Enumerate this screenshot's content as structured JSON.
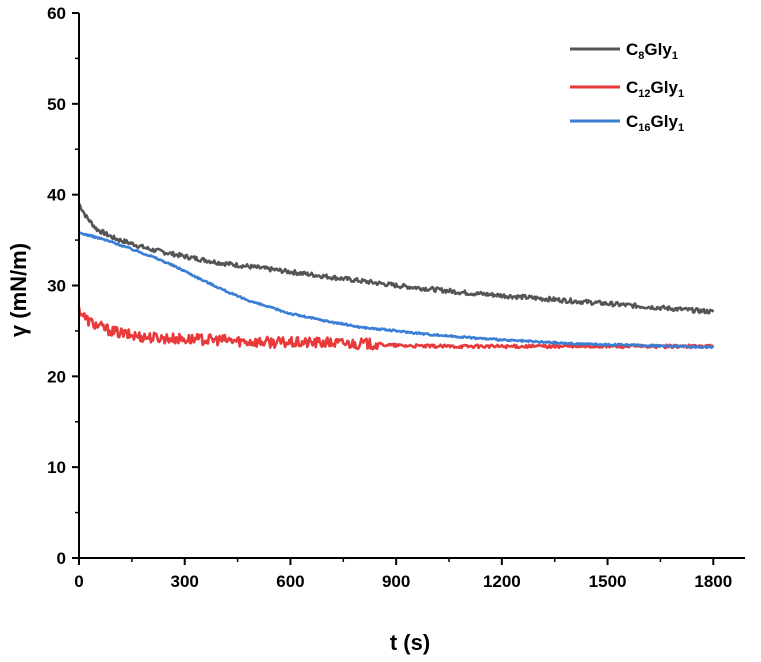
{
  "chart_data": {
    "type": "line",
    "title": "",
    "xlabel": "t (s)",
    "ylabel": "γ (mN/m)",
    "xlim": [
      0,
      1890
    ],
    "ylim": [
      0,
      60
    ],
    "xticks": [
      0,
      300,
      600,
      900,
      1200,
      1500,
      1800
    ],
    "yticks": [
      0,
      10,
      20,
      30,
      40,
      50,
      60
    ],
    "x_tick_labels": [
      "0",
      "300",
      "600",
      "900",
      "1200",
      "1500",
      "1800"
    ],
    "y_tick_labels": [
      "0",
      "10",
      "20",
      "30",
      "40",
      "50",
      "60"
    ],
    "grid": false,
    "legend_position": "top-right",
    "series": [
      {
        "name": "C8Gly1",
        "legend_base": "C",
        "legend_sub1": "8",
        "legend_mid": "Gly",
        "legend_sub2": "1",
        "color": "#555555",
        "noise": 0.25,
        "x": [
          0,
          20,
          50,
          100,
          150,
          200,
          300,
          400,
          500,
          600,
          700,
          800,
          900,
          1000,
          1100,
          1200,
          1300,
          1400,
          1500,
          1600,
          1700,
          1800
        ],
        "y": [
          39.0,
          37.6,
          36.2,
          35.2,
          34.6,
          34.0,
          33.2,
          32.5,
          32.0,
          31.5,
          31.0,
          30.5,
          30.0,
          29.6,
          29.2,
          28.9,
          28.6,
          28.3,
          28.0,
          27.7,
          27.4,
          27.1
        ]
      },
      {
        "name": "C12Gly1",
        "legend_base": "C",
        "legend_sub1": "12",
        "legend_mid": "Gly",
        "legend_sub2": "1",
        "color": "#e8393b",
        "noise": 0.6,
        "x": [
          0,
          20,
          50,
          100,
          150,
          200,
          300,
          400,
          500,
          600,
          700,
          800,
          900,
          1000,
          1100,
          1200,
          1300,
          1400,
          1500,
          1600,
          1700,
          1800
        ],
        "y": [
          27.4,
          26.3,
          25.6,
          24.9,
          24.5,
          24.3,
          24.1,
          24.0,
          23.8,
          23.7,
          23.7,
          23.6,
          23.4,
          23.3,
          23.3,
          23.3,
          23.3,
          23.3,
          23.3,
          23.3,
          23.3,
          23.3
        ]
      },
      {
        "name": "C16Gly1",
        "legend_base": "C",
        "legend_sub1": "16",
        "legend_mid": "Gly",
        "legend_sub2": "1",
        "color": "#3a7fd5",
        "noise": 0.1,
        "x": [
          0,
          50,
          100,
          150,
          200,
          250,
          300,
          350,
          400,
          450,
          500,
          600,
          700,
          800,
          900,
          1000,
          1100,
          1200,
          1300,
          1400,
          1500,
          1600,
          1700,
          1800
        ],
        "y": [
          35.8,
          35.3,
          34.7,
          34.0,
          33.3,
          32.5,
          31.6,
          30.6,
          29.7,
          28.8,
          28.1,
          26.9,
          26.1,
          25.4,
          25.0,
          24.6,
          24.3,
          24.0,
          23.8,
          23.6,
          23.5,
          23.4,
          23.3,
          23.2
        ]
      }
    ]
  }
}
